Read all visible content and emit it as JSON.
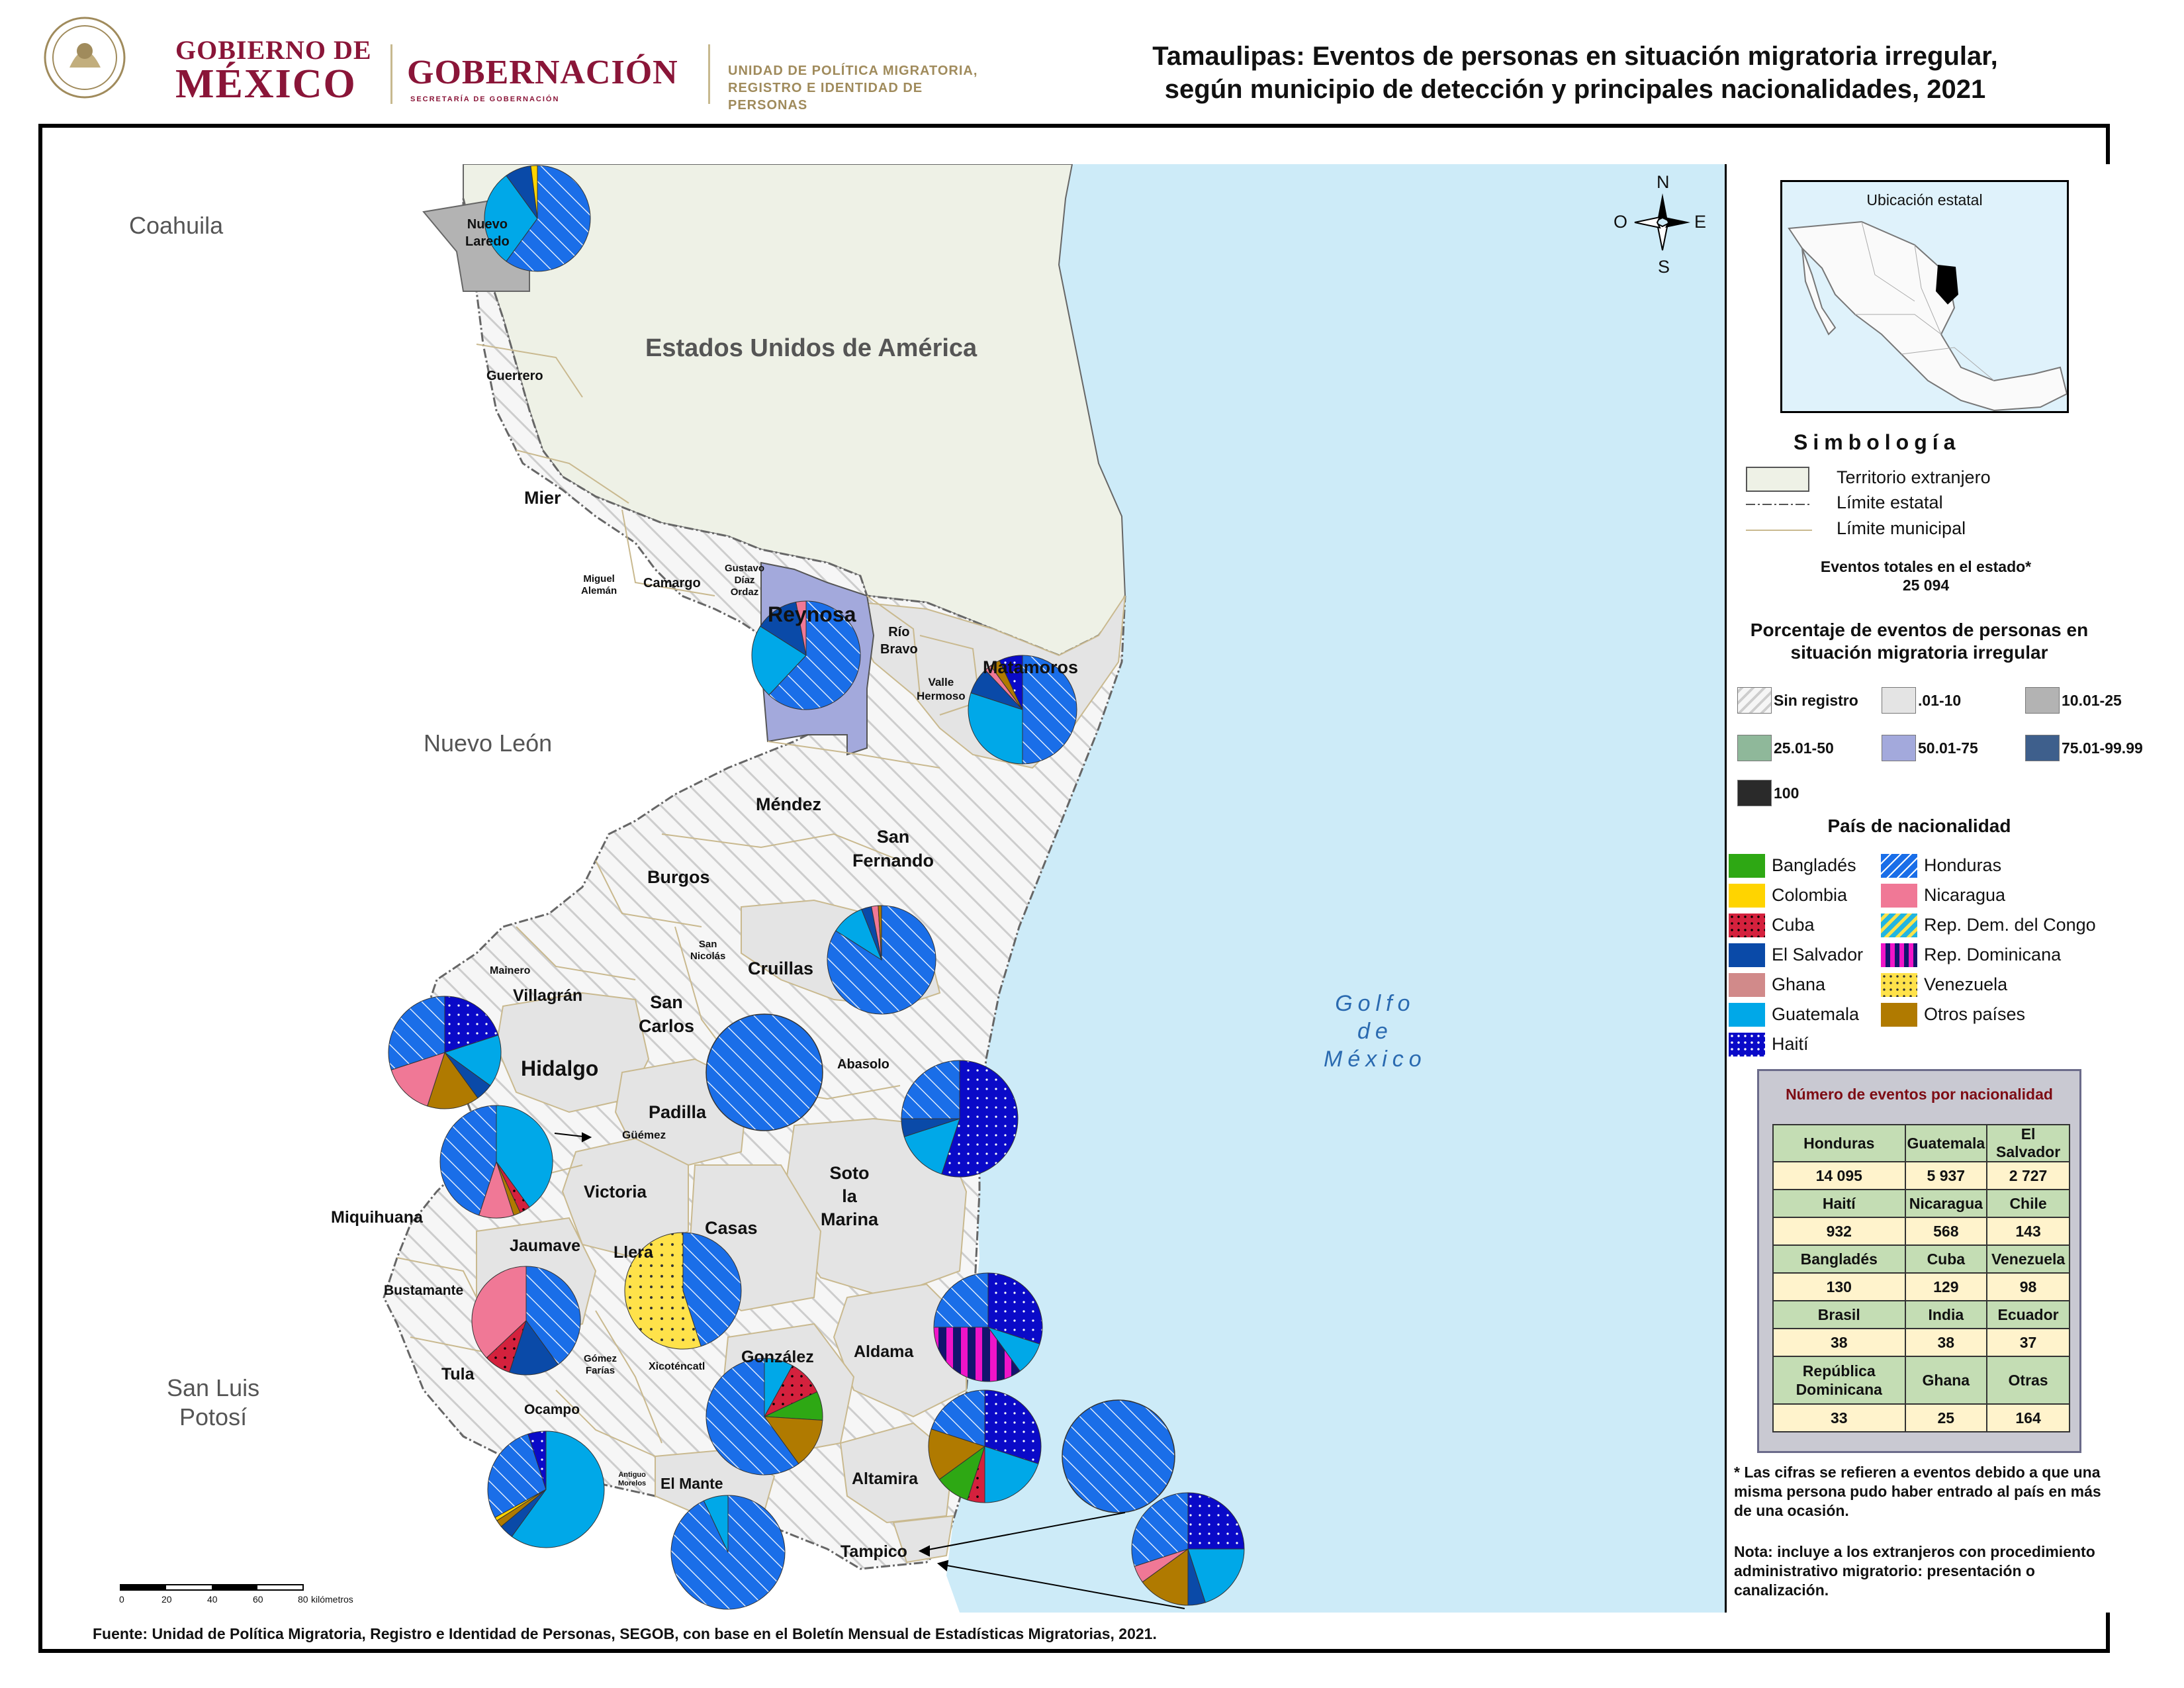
{
  "header": {
    "gob_line1": "GOBIERNO DE",
    "gob_line2": "MÉXICO",
    "gobernacion": "GOBERNACIÓN",
    "secretaria": "SECRETARÍA DE GOBERNACIÓN",
    "unidad_line1": "UNIDAD DE POLÍTICA MIGRATORIA,",
    "unidad_line2": "REGISTRO E IDENTIDAD DE PERSONAS",
    "title_line1": "Tamaulipas: Eventos de personas en situación migratoria irregular,",
    "title_line2": "según municipio de detección y principales nacionalidades, 2021"
  },
  "map": {
    "region_labels": {
      "coahuila": "Coahuila",
      "nuevo_leon": "Nuevo León",
      "slp_line1": "San Luis",
      "slp_line2": "Potosí",
      "usa": "Estados Unidos de América",
      "gulf_line1": "Golfo",
      "gulf_line2": "de",
      "gulf_line3": "México"
    },
    "municipalities": {
      "nuevo_laredo_1": "Nuevo",
      "nuevo_laredo_2": "Laredo",
      "guerrero": "Guerrero",
      "mier": "Mier",
      "miguel_aleman_1": "Miguel",
      "miguel_aleman_2": "Alemán",
      "camargo": "Camargo",
      "gustavo_1": "Gustavo",
      "gustavo_2": "Díaz",
      "gustavo_3": "Ordaz",
      "reynosa": "Reynosa",
      "rio_bravo_1": "Río",
      "rio_bravo_2": "Bravo",
      "valle_1": "Valle",
      "valle_2": "Hermoso",
      "matamoros": "Matamoros",
      "mendez": "Méndez",
      "san_fernando_1": "San",
      "san_fernando_2": "Fernando",
      "burgos": "Burgos",
      "san_nicolas_1": "San",
      "san_nicolas_2": "Nicolás",
      "cruillas": "Cruillas",
      "mainero": "Mainero",
      "villagran": "Villagrán",
      "san_carlos_1": "San",
      "san_carlos_2": "Carlos",
      "hidalgo": "Hidalgo",
      "abasolo": "Abasolo",
      "padilla": "Padilla",
      "guemez": "Güémez",
      "victoria": "Victoria",
      "soto_1": "Soto",
      "soto_2": "la",
      "soto_3": "Marina",
      "miquihuana": "Miquihuana",
      "casas": "Casas",
      "jaumave": "Jaumave",
      "llera": "Llera",
      "bustamante": "Bustamante",
      "tula": "Tula",
      "gomez_1": "Gómez",
      "gomez_2": "Farías",
      "xicotencatl": "Xicoténcatl",
      "gonzalez": "González",
      "aldama": "Aldama",
      "ocampo": "Ocampo",
      "antiguo_1": "Antiguo",
      "antiguo_2": "Morelos",
      "el_mante": "El Mante",
      "altamira": "Altamira",
      "tampico": "Tampico"
    },
    "compass": {
      "n": "N",
      "s": "S",
      "e": "E",
      "o": "O"
    },
    "scale": {
      "ticks": [
        "0",
        "20",
        "40",
        "60",
        "80"
      ],
      "unit": "kilómetros"
    },
    "source": "Fuente: Unidad de Política Migratoria, Registro e Identidad de Personas, SEGOB, con base en el Boletín Mensual de Estadísticas Migratorias, 2021."
  },
  "colors": {
    "Bangladés": "#2ea814",
    "Colombia": "#ffd400",
    "Cuba": "#d4213d",
    "El Salvador": "#0a4aa8",
    "Ghana": "#d18a8a",
    "Guatemala": "#00a8e8",
    "Haití": "#0a0ac8",
    "Honduras": "#1a6ee8",
    "Nicaragua": "#f07896",
    "Rep. Dem. del Congo": "#22b5e0",
    "Rep. Dominicana": "#f014c8",
    "Venezuela": "#ffe24a",
    "Otros países": "#b07a00"
  },
  "pies": [
    {
      "muni": "Nuevo Laredo",
      "slices": [
        [
          "Honduras",
          60
        ],
        [
          "Guatemala",
          30
        ],
        [
          "El Salvador",
          8
        ],
        [
          "Colombia",
          2
        ]
      ]
    },
    {
      "muni": "Reynosa",
      "slices": [
        [
          "Honduras",
          62
        ],
        [
          "Guatemala",
          22
        ],
        [
          "El Salvador",
          13
        ],
        [
          "Nicaragua",
          3
        ]
      ]
    },
    {
      "muni": "Matamoros",
      "slices": [
        [
          "Honduras",
          50
        ],
        [
          "Guatemala",
          30
        ],
        [
          "El Salvador",
          8
        ],
        [
          "Nicaragua",
          2
        ],
        [
          "Otros países",
          3
        ],
        [
          "Haití",
          7
        ]
      ]
    },
    {
      "muni": "San Fernando",
      "slices": [
        [
          "Honduras",
          84
        ],
        [
          "Guatemala",
          10
        ],
        [
          "El Salvador",
          3
        ],
        [
          "Nicaragua",
          2
        ],
        [
          "Otros países",
          1
        ]
      ]
    },
    {
      "muni": "Villagrán",
      "slices": [
        [
          "Haití",
          20
        ],
        [
          "Guatemala",
          15
        ],
        [
          "El Salvador",
          5
        ],
        [
          "Otros países",
          15
        ],
        [
          "Nicaragua",
          15
        ],
        [
          "Honduras",
          30
        ]
      ]
    },
    {
      "muni": "Abasolo",
      "slices": [
        [
          "Honduras",
          100
        ]
      ]
    },
    {
      "muni": "Güémez",
      "slices": [
        [
          "Guatemala",
          40
        ],
        [
          "Cuba",
          3
        ],
        [
          "Otros países",
          2
        ],
        [
          "Nicaragua",
          10
        ],
        [
          "Honduras",
          45
        ]
      ]
    },
    {
      "muni": "Soto la Marina",
      "slices": [
        [
          "Haití",
          55
        ],
        [
          "Guatemala",
          15
        ],
        [
          "El Salvador",
          5
        ],
        [
          "Honduras",
          25
        ]
      ]
    },
    {
      "muni": "Llera",
      "slices": [
        [
          "Honduras",
          45
        ],
        [
          "Venezuela",
          55
        ]
      ]
    },
    {
      "muni": "Jaumave",
      "slices": [
        [
          "Honduras",
          40
        ],
        [
          "El Salvador",
          15
        ],
        [
          "Cuba",
          8
        ],
        [
          "Nicaragua",
          37
        ]
      ]
    },
    {
      "muni": "Aldama",
      "slices": [
        [
          "Haití",
          30
        ],
        [
          "Guatemala",
          10
        ],
        [
          "Rep. Dominicana",
          35
        ],
        [
          "Honduras",
          25
        ]
      ]
    },
    {
      "muni": "González",
      "slices": [
        [
          "Guatemala",
          8
        ],
        [
          "Cuba",
          10
        ],
        [
          "Bangladés",
          8
        ],
        [
          "Otros países",
          14
        ],
        [
          "Honduras",
          60
        ]
      ]
    },
    {
      "muni": "Ocampo",
      "slices": [
        [
          "Guatemala",
          60
        ],
        [
          "El Salvador",
          4
        ],
        [
          "Otros países",
          2
        ],
        [
          "Colombia",
          1
        ],
        [
          "Honduras",
          28
        ],
        [
          "Haití",
          5
        ]
      ]
    },
    {
      "muni": "El Mante",
      "slices": [
        [
          "Honduras",
          93
        ],
        [
          "Guatemala",
          7
        ]
      ]
    },
    {
      "muni": "Altamira",
      "slices": [
        [
          "Haití",
          30
        ],
        [
          "Guatemala",
          20
        ],
        [
          "Cuba",
          5
        ],
        [
          "Bangladés",
          10
        ],
        [
          "Otros países",
          15
        ],
        [
          "Honduras",
          20
        ]
      ]
    },
    {
      "muni": "Tampico (1)",
      "slices": [
        [
          "Honduras",
          100
        ]
      ]
    },
    {
      "muni": "Tampico (2)",
      "slices": [
        [
          "Haití",
          25
        ],
        [
          "Guatemala",
          20
        ],
        [
          "El Salvador",
          5
        ],
        [
          "Otros países",
          15
        ],
        [
          "Nicaragua",
          5
        ],
        [
          "Honduras",
          30
        ]
      ]
    }
  ],
  "legend": {
    "inset_title": "Ubicación estatal",
    "simbologia": "Simbología",
    "symbols": {
      "foreign": "Territorio extranjero",
      "state": "Límite estatal",
      "municipal": "Límite municipal"
    },
    "events_total_title": "Eventos totales en el estado*",
    "events_total_value": "25 094",
    "pct_title_line1": "Porcentaje de eventos de personas en",
    "pct_title_line2": "situación migratoria irregular",
    "pct_classes": [
      "Sin registro",
      ".01-10",
      "10.01-25",
      "25.01-50",
      "50.01-75",
      "75.01-99.99",
      "100"
    ],
    "pct_colors": [
      "#ffffff",
      "#e4e4e4",
      "#b3b3b3",
      "#8fb89a",
      "#a3a9dc",
      "#3e5f8c",
      "#2a2a2a"
    ],
    "nat_title": "País de nacionalidad",
    "nationalities_left": [
      "Bangladés",
      "Colombia",
      "Cuba",
      "El Salvador",
      "Ghana",
      "Guatemala",
      "Haití"
    ],
    "nationalities_right": [
      "Honduras",
      "Nicaragua",
      "Rep. Dem. del Congo",
      "Rep. Dominicana",
      "Venezuela",
      "Otros países"
    ]
  },
  "events_table": {
    "title": "Número de eventos por nacionalidad",
    "rows": [
      [
        {
          "n": "Honduras",
          "v": "14 095"
        },
        {
          "n": "Guatemala",
          "v": "5 937"
        },
        {
          "n": "El Salvador",
          "v": "2 727"
        }
      ],
      [
        {
          "n": "Haití",
          "v": "932"
        },
        {
          "n": "Nicaragua",
          "v": "568"
        },
        {
          "n": "Chile",
          "v": "143"
        }
      ],
      [
        {
          "n": "Bangladés",
          "v": "130"
        },
        {
          "n": "Cuba",
          "v": "129"
        },
        {
          "n": "Venezuela",
          "v": "98"
        }
      ],
      [
        {
          "n": "Brasil",
          "v": "38"
        },
        {
          "n": "India",
          "v": "38"
        },
        {
          "n": "Ecuador",
          "v": "37"
        }
      ],
      [
        {
          "n": "República Dominicana",
          "v": "33"
        },
        {
          "n": "Ghana",
          "v": "25"
        },
        {
          "n": "Otras",
          "v": "164"
        }
      ]
    ]
  },
  "notes": {
    "note1": "* Las cifras se refieren a eventos debido a que una misma persona pudo haber entrado al país en más de una ocasión.",
    "note2": "Nota: incluye a los extranjeros con procedimiento administrativo migratorio: presentación o canalización."
  }
}
